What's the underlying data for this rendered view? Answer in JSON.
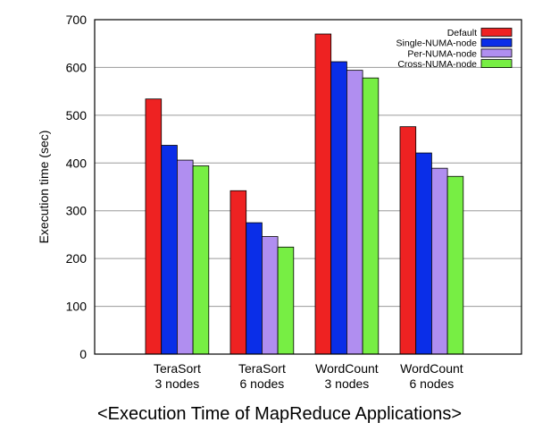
{
  "chart_data": {
    "type": "bar",
    "caption": "<Execution Time of MapReduce Applications>",
    "ylabel": "Execution time (sec)",
    "ylim": [
      0,
      700
    ],
    "yticks": [
      0,
      100,
      200,
      300,
      400,
      500,
      600,
      700
    ],
    "grid": true,
    "legend_position": "top-right",
    "categories": [
      [
        "TeraSort",
        "3 nodes"
      ],
      [
        "TeraSort",
        "6 nodes"
      ],
      [
        "WordCount",
        "3 nodes"
      ],
      [
        "WordCount",
        "6 nodes"
      ]
    ],
    "series": [
      {
        "name": "Default",
        "color": "#ee2222",
        "values": [
          534,
          342,
          670,
          476
        ]
      },
      {
        "name": "Single-NUMA-node",
        "color": "#0a2ee8",
        "values": [
          437,
          275,
          612,
          421
        ]
      },
      {
        "name": "Per-NUMA-node",
        "color": "#b08ef0",
        "values": [
          406,
          246,
          594,
          389
        ]
      },
      {
        "name": "Cross-NUMA-node",
        "color": "#77ee44",
        "values": [
          394,
          224,
          578,
          372
        ]
      }
    ]
  }
}
